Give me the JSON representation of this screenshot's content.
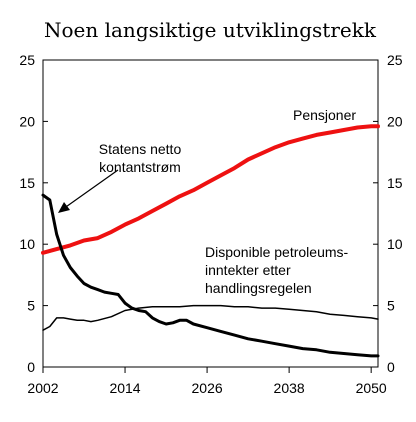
{
  "chart_data": {
    "type": "line",
    "title": "Noen langsiktige utviklingstrekk",
    "xlabel": "",
    "ylabel": "",
    "xlim": [
      2002,
      2051
    ],
    "ylim": [
      0,
      25
    ],
    "x_ticks": [
      2002,
      2014,
      2026,
      2038,
      2050
    ],
    "y_ticks": [
      0,
      5,
      10,
      15,
      20,
      25
    ],
    "right_axis_ticks": [
      0,
      5,
      10,
      15,
      20,
      25
    ],
    "grid": false,
    "series": [
      {
        "name": "Pensjoner",
        "color": "#ee1111",
        "width": 4,
        "x": [
          2002,
          2004,
          2006,
          2008,
          2010,
          2012,
          2014,
          2016,
          2018,
          2020,
          2022,
          2024,
          2026,
          2028,
          2030,
          2032,
          2034,
          2036,
          2038,
          2040,
          2042,
          2044,
          2046,
          2048,
          2050,
          2051
        ],
        "values": [
          9.3,
          9.6,
          9.9,
          10.3,
          10.5,
          11.0,
          11.6,
          12.1,
          12.7,
          13.3,
          13.9,
          14.4,
          15.0,
          15.6,
          16.2,
          16.9,
          17.4,
          17.9,
          18.3,
          18.6,
          18.9,
          19.1,
          19.3,
          19.5,
          19.6,
          19.6
        ]
      },
      {
        "name": "Statens netto kontantstrøm",
        "color": "#000000",
        "width": 3,
        "x": [
          2002,
          2003,
          2004,
          2005,
          2006,
          2007,
          2008,
          2009,
          2010,
          2011,
          2012,
          2013,
          2014,
          2015,
          2016,
          2017,
          2018,
          2019,
          2020,
          2021,
          2022,
          2023,
          2024,
          2026,
          2028,
          2030,
          2032,
          2034,
          2036,
          2038,
          2040,
          2042,
          2044,
          2046,
          2048,
          2050,
          2051
        ],
        "values": [
          14.0,
          13.6,
          10.8,
          9.1,
          8.1,
          7.4,
          6.8,
          6.5,
          6.3,
          6.1,
          6.0,
          5.9,
          5.2,
          4.8,
          4.6,
          4.5,
          4.0,
          3.7,
          3.5,
          3.6,
          3.8,
          3.8,
          3.5,
          3.2,
          2.9,
          2.6,
          2.3,
          2.1,
          1.9,
          1.7,
          1.5,
          1.4,
          1.2,
          1.1,
          1.0,
          0.9,
          0.9
        ]
      },
      {
        "name": "Disponible petroleumsinntekter etter handlingsregelen",
        "color": "#000000",
        "width": 1.5,
        "x": [
          2002,
          2003,
          2004,
          2005,
          2006,
          2007,
          2008,
          2009,
          2010,
          2012,
          2014,
          2016,
          2018,
          2020,
          2022,
          2024,
          2026,
          2028,
          2030,
          2032,
          2034,
          2036,
          2038,
          2040,
          2042,
          2044,
          2046,
          2048,
          2050,
          2051
        ],
        "values": [
          3.0,
          3.3,
          4.0,
          4.0,
          3.9,
          3.8,
          3.8,
          3.7,
          3.8,
          4.1,
          4.6,
          4.8,
          4.9,
          4.9,
          4.9,
          5.0,
          5.0,
          5.0,
          4.9,
          4.9,
          4.8,
          4.8,
          4.7,
          4.6,
          4.5,
          4.3,
          4.2,
          4.1,
          4.0,
          3.9
        ]
      }
    ],
    "annotations": {
      "pensjoner": [
        "Pensjoner"
      ],
      "kontantstrom": [
        "Statens netto",
        "kontantstrøm"
      ],
      "petroleum": [
        "Disponible petroleums-",
        "inntekter etter",
        "handlingsregelen"
      ]
    }
  }
}
